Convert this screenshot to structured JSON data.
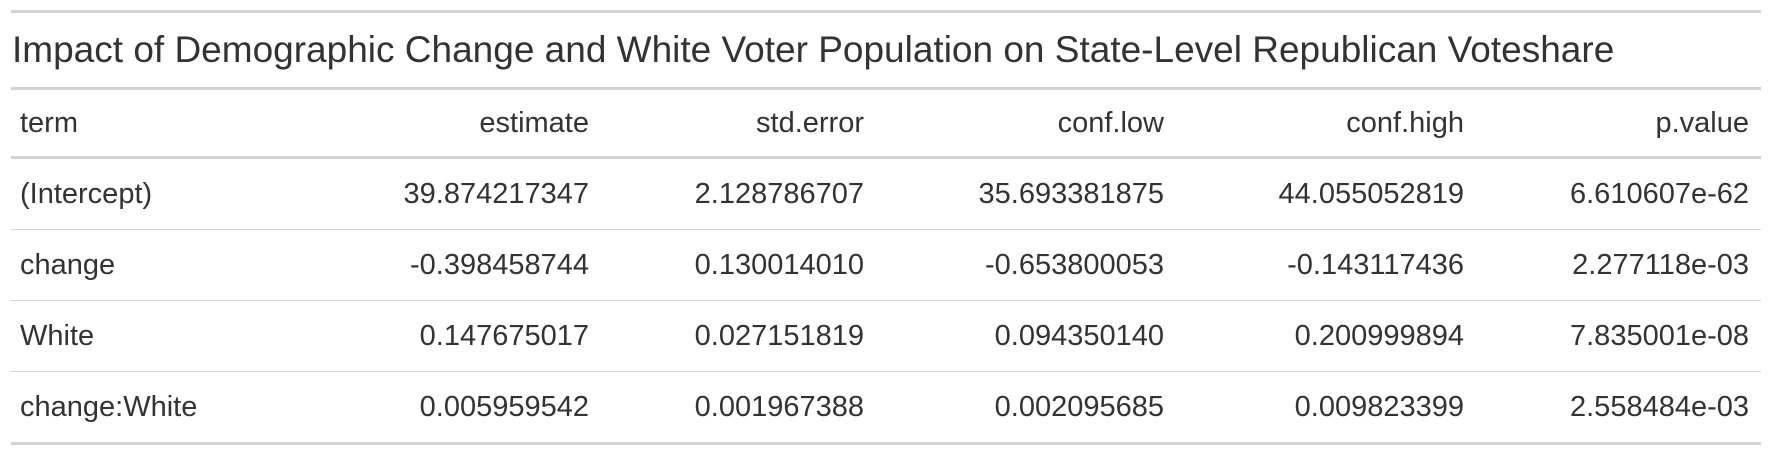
{
  "title": "Impact of Demographic Change and White Voter Population on State-Level Republican Voteshare",
  "columns": [
    "term",
    "estimate",
    "std.error",
    "conf.low",
    "conf.high",
    "p.value"
  ],
  "rows": [
    [
      "(Intercept)",
      "39.874217347",
      "2.128786707",
      "35.693381875",
      "44.055052819",
      "6.610607e-62"
    ],
    [
      "change",
      "-0.398458744",
      "0.130014010",
      "-0.653800053",
      "-0.143117436",
      "2.277118e-03"
    ],
    [
      "White",
      "0.147675017",
      "0.027151819",
      "0.094350140",
      "0.200999894",
      "7.835001e-08"
    ],
    [
      "change:White",
      "0.005959542",
      "0.001967388",
      "0.002095685",
      "0.009823399",
      "2.558484e-03"
    ]
  ],
  "colors": {
    "text": "#333333",
    "rule": "#d3d3d3",
    "background": "#ffffff"
  }
}
